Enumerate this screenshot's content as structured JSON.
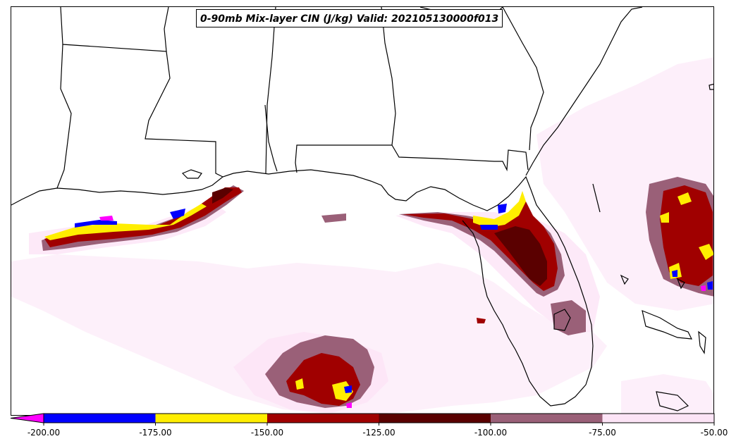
{
  "title": "0-90mb Mix-layer CIN (J/kg) Valid: 202105130000f013",
  "colorbar": {
    "ticks": [
      "-200.00",
      "-175.00",
      "-150.00",
      "-125.00",
      "-100.00",
      "-75.00",
      "-50.00"
    ],
    "bins": [
      {
        "from": -200,
        "to": -175,
        "color": "#0000ff"
      },
      {
        "from": -175,
        "to": -150,
        "color": "#ffee00"
      },
      {
        "from": -150,
        "to": -125,
        "color": "#a00000"
      },
      {
        "from": -125,
        "to": -100,
        "color": "#5a0000"
      },
      {
        "from": -100,
        "to": -75,
        "color": "#9a6078"
      },
      {
        "from": -75,
        "to": -50,
        "color": "#fce4f6"
      }
    ],
    "under_color": "#ff00ff"
  },
  "colors": {
    "coast": "#000000",
    "state_border": "#000000",
    "background": "#ffffff"
  }
}
